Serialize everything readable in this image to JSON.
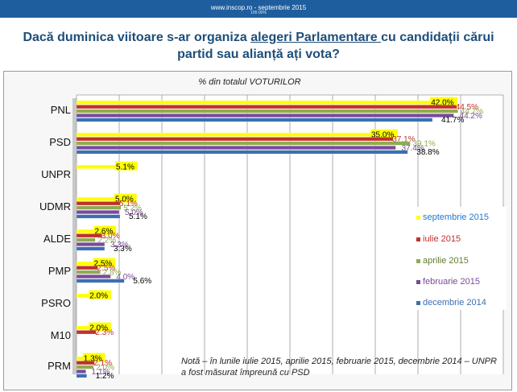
{
  "header": {
    "site": "www.inscop.ro   -   septembrie 2015",
    "base": "100.00%"
  },
  "title": {
    "part1": "Dacă duminica viitoare s-ar organiza ",
    "part2": "alegeri Parlamentare ",
    "part3": "cu candidații cărui partid sau alianță ați vota?"
  },
  "note": "Notă – în lunile iulie 2015, aprilie 2015, februarie 2015, decembrie 2014 – UNPR a fost măsurat împreună cu PSD",
  "chart_data": {
    "type": "bar",
    "orientation": "horizontal",
    "title": "% din totalul VOTURILOR",
    "categories": [
      "PNL",
      "PSD",
      "UNPR",
      "UDMR",
      "ALDE",
      "PMP",
      "PSRO",
      "M10",
      "PRM"
    ],
    "xlim": [
      0,
      50
    ],
    "grid": true,
    "legend_position": "right",
    "series": [
      {
        "name": "septembrie 2015",
        "color": "#ffff00",
        "values": [
          42.0,
          35.0,
          5.1,
          5.0,
          2.6,
          2.5,
          2.0,
          2.0,
          1.3
        ],
        "labels": [
          "42.0%",
          "35.0%",
          "5.1%",
          "5.0%",
          "2.6%",
          "2.5%",
          "2.0%",
          "2.0%",
          "1.3%"
        ]
      },
      {
        "name": "iulie 2015",
        "color": "#c0302b",
        "values": [
          44.5,
          37.1,
          null,
          5.1,
          3.0,
          2.5,
          null,
          2.3,
          2.1
        ],
        "labels": [
          "44.5%",
          "37.1%",
          "",
          "5.1%",
          "3.0%",
          "2.5%",
          "",
          "2.3%",
          "2.1%"
        ]
      },
      {
        "name": "aprilie 2015",
        "color": "#8fac4f",
        "values": [
          44.7,
          39.1,
          null,
          5.2,
          2.2,
          2.8,
          null,
          null,
          2.0
        ],
        "labels": [
          "44.7%",
          "39.1%",
          "",
          "5.2%",
          "2.2%",
          "2.8%",
          "",
          "",
          "2.0%"
        ]
      },
      {
        "name": "februarie 2015",
        "color": "#7a4a9c",
        "values": [
          44.2,
          37.4,
          null,
          5.0,
          3.3,
          4.0,
          null,
          null,
          1.1
        ],
        "labels": [
          "44.2%",
          "37.4%",
          "",
          "5.0%",
          "3.3%",
          "4.0%",
          "",
          "",
          "1.1%"
        ]
      },
      {
        "name": "decembrie 2014",
        "color": "#3c6fb0",
        "values": [
          41.7,
          38.8,
          null,
          5.1,
          3.3,
          5.6,
          null,
          null,
          1.2
        ],
        "labels": [
          "41.7%",
          "38.8%",
          "",
          "5.1%",
          "3.3%",
          "5.6%",
          "",
          "",
          "1.2%"
        ]
      }
    ]
  }
}
